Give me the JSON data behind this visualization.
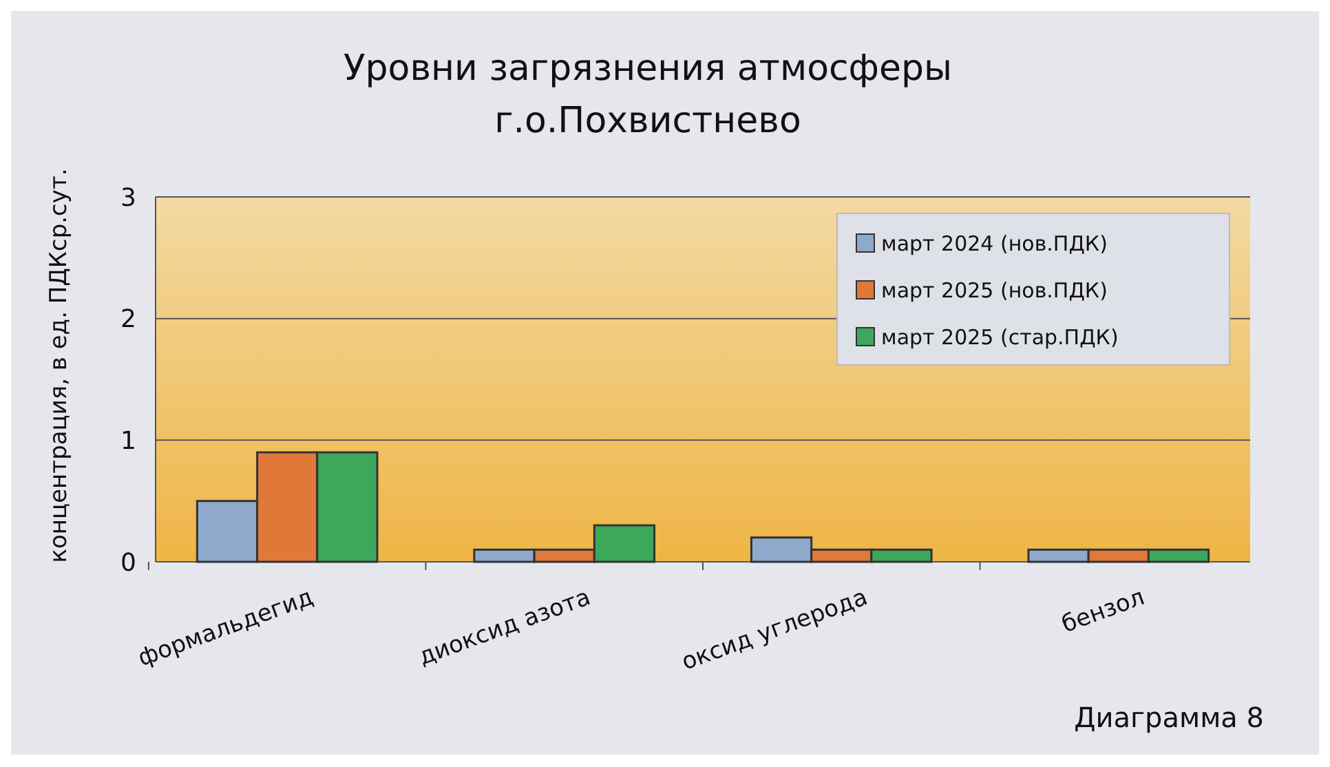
{
  "chart_data": {
    "type": "bar",
    "title": "Уровни загрязнения атмосферы\nг.о.Похвистнево",
    "ylabel": "концентрация, в ед. ПДКср.сут.",
    "categories": [
      "формальдегид",
      "диоксид азота",
      "оксид углерода",
      "бензол"
    ],
    "series": [
      {
        "name": "март 2024 (нов.ПДК)",
        "color": "#8fa9cc",
        "values": [
          0.5,
          0.1,
          0.2,
          0.1
        ]
      },
      {
        "name": "март 2025 (нов.ПДК)",
        "color": "#e0783a",
        "values": [
          0.9,
          0.1,
          0.1,
          0.1
        ]
      },
      {
        "name": "март 2025 (стар.ПДК)",
        "color": "#3da85c",
        "values": [
          0.9,
          0.3,
          0.1,
          0.1
        ]
      }
    ],
    "ylim": [
      0,
      3
    ],
    "yticks": [
      0,
      1,
      2,
      3
    ],
    "grid": "y",
    "legend": "top right",
    "annotations": [
      "Диаграмма 8"
    ]
  }
}
